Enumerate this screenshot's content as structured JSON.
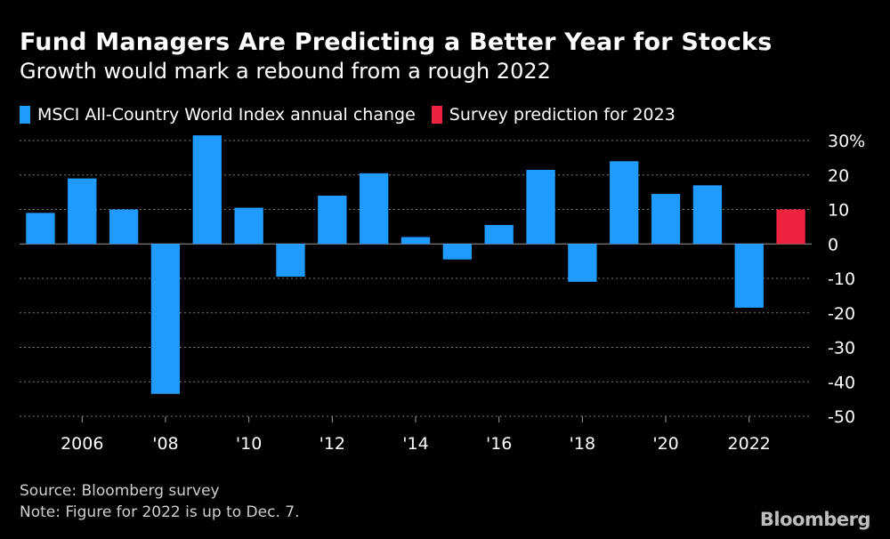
{
  "chart_data": {
    "type": "bar",
    "title": "Fund Managers Are Predicting a Better Year for Stocks",
    "subtitle": "Growth would mark a rebound from a rough 2022",
    "legend": [
      {
        "name": "MSCI All-Country World Index annual change",
        "color": "#1f9bff"
      },
      {
        "name": "Survey prediction for 2023",
        "color": "#ee2340"
      }
    ],
    "categories": [
      "2005",
      "2006",
      "2007",
      "2008",
      "2009",
      "2010",
      "2011",
      "2012",
      "2013",
      "2014",
      "2015",
      "2016",
      "2017",
      "2018",
      "2019",
      "2020",
      "2021",
      "2022",
      "2023"
    ],
    "series": [
      {
        "name": "MSCI All-Country World Index annual change",
        "color": "#1f9bff",
        "values": [
          9,
          19,
          10,
          -43.5,
          31.5,
          10.5,
          -9.5,
          14,
          20.5,
          2,
          -4.5,
          5.5,
          21.5,
          -11,
          24,
          14.5,
          17,
          -18.5,
          null
        ]
      },
      {
        "name": "Survey prediction for 2023",
        "color": "#ee2340",
        "values": [
          null,
          null,
          null,
          null,
          null,
          null,
          null,
          null,
          null,
          null,
          null,
          null,
          null,
          null,
          null,
          null,
          null,
          null,
          10
        ]
      }
    ],
    "x_tick_labels": [
      {
        "category": "2006",
        "label": "2006"
      },
      {
        "category": "2008",
        "label": "'08"
      },
      {
        "category": "2010",
        "label": "'10"
      },
      {
        "category": "2012",
        "label": "'12"
      },
      {
        "category": "2014",
        "label": "'14"
      },
      {
        "category": "2016",
        "label": "'16"
      },
      {
        "category": "2018",
        "label": "'18"
      },
      {
        "category": "2020",
        "label": "'20"
      },
      {
        "category": "2022",
        "label": "2022"
      }
    ],
    "y_ticks": [
      30,
      20,
      10,
      0,
      -10,
      -20,
      -30,
      -40,
      -50
    ],
    "y_tick_labels": [
      "30%",
      "20",
      "10",
      "0",
      "-10",
      "-20",
      "-30",
      "-40",
      "-50"
    ],
    "ylim": [
      -50,
      30
    ],
    "grid": true,
    "xlabel": "",
    "ylabel": ""
  },
  "footer": {
    "source": "Source: Bloomberg survey",
    "note": "Note: Figure for 2022 is up to Dec. 7."
  },
  "logo": "Bloomberg"
}
